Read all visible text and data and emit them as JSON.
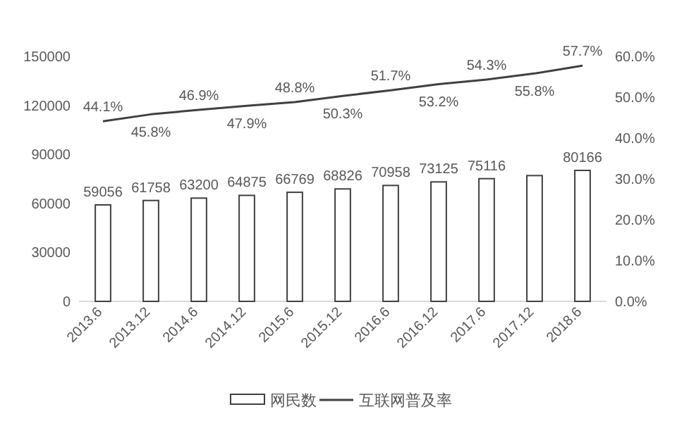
{
  "chart_data": {
    "type": "bar",
    "categories": [
      "2013.6",
      "2013.12",
      "2014.6",
      "2014.12",
      "2015.6",
      "2015.12",
      "2016.6",
      "2016.12",
      "2017.6",
      "2017.12",
      "2018.6"
    ],
    "series": [
      {
        "name": "网民数",
        "color": "#ffffff",
        "values": [
          59056,
          61758,
          63200,
          64875,
          66769,
          68826,
          70958,
          73125,
          75116,
          77000,
          80166
        ],
        "value_labels": [
          "59056",
          "61758",
          "63200",
          "64875",
          "66769",
          "68826",
          "70958",
          "73125",
          "75116",
          null,
          "80166"
        ]
      },
      {
        "name": "互联网普及率",
        "type": "line",
        "axis": "y2",
        "color": "#404040",
        "values": [
          44.1,
          45.8,
          46.9,
          47.9,
          48.8,
          50.3,
          51.7,
          53.2,
          54.3,
          55.8,
          57.7
        ],
        "value_labels": [
          "44.1%",
          "45.8%",
          "46.9%",
          "47.9%",
          "48.8%",
          "50.3%",
          "51.7%",
          "53.2%",
          "54.3%",
          "55.8%",
          "57.7%"
        ]
      }
    ],
    "ylim": [
      0,
      150000
    ],
    "yticks": [
      0,
      30000,
      60000,
      90000,
      120000,
      150000
    ],
    "y2lim": [
      0,
      60
    ],
    "y2ticks": [
      {
        "value": 0,
        "label": "0.0%"
      },
      {
        "value": 10,
        "label": "10.0%"
      },
      {
        "value": 20,
        "label": "20.0%"
      },
      {
        "value": 30,
        "label": "30.0%"
      },
      {
        "value": 40,
        "label": "40.0%"
      },
      {
        "value": 50,
        "label": "50.0%"
      },
      {
        "value": 60,
        "label": "60.0%"
      }
    ],
    "legend": "bottom"
  }
}
